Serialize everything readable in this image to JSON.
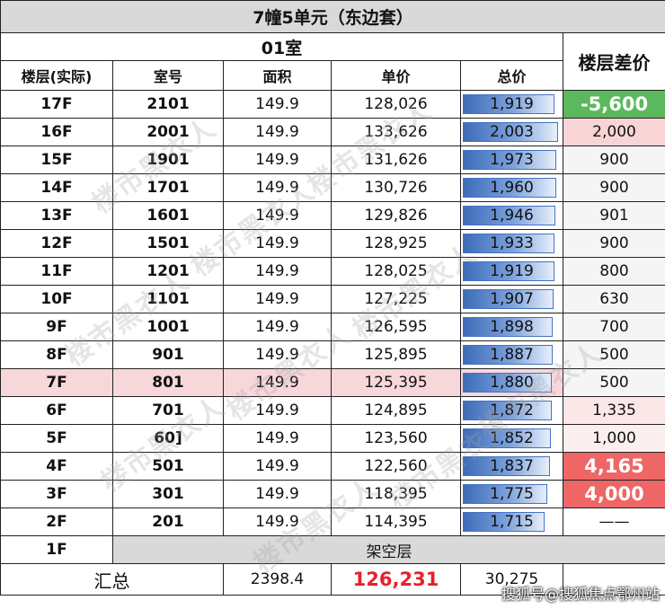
{
  "title": "7幢5单元（东边套）",
  "room_label": "01室",
  "headers": {
    "floor": "楼层(实际)",
    "unit": "室号",
    "area": "面积",
    "unit_price": "单价",
    "total": "总价",
    "diff": "楼层差价"
  },
  "rows": [
    {
      "floor": "17F",
      "unit": "2101",
      "area": "149.9",
      "price": "128,026",
      "total": "1,919",
      "total_value": 1919,
      "diff": "-5,600",
      "diff_style": "green"
    },
    {
      "floor": "16F",
      "unit": "2001",
      "area": "149.9",
      "price": "133,626",
      "total": "2,003",
      "total_value": 2003,
      "diff": "2,000",
      "diff_style": "pos-light"
    },
    {
      "floor": "15F",
      "unit": "1901",
      "area": "149.9",
      "price": "131,626",
      "total": "1,973",
      "total_value": 1973,
      "diff": "900",
      "diff_style": "pos-lighter"
    },
    {
      "floor": "14F",
      "unit": "1701",
      "area": "149.9",
      "price": "130,726",
      "total": "1,960",
      "total_value": 1960,
      "diff": "900",
      "diff_style": "pos-lighter"
    },
    {
      "floor": "13F",
      "unit": "1601",
      "area": "149.9",
      "price": "129,826",
      "total": "1,946",
      "total_value": 1946,
      "diff": "901",
      "diff_style": "pos-lighter"
    },
    {
      "floor": "12F",
      "unit": "1501",
      "area": "149.9",
      "price": "128,925",
      "total": "1,933",
      "total_value": 1933,
      "diff": "900",
      "diff_style": "pos-lighter"
    },
    {
      "floor": "11F",
      "unit": "1201",
      "area": "149.9",
      "price": "128,025",
      "total": "1,919",
      "total_value": 1919,
      "diff": "800",
      "diff_style": "pos-lighter"
    },
    {
      "floor": "10F",
      "unit": "1101",
      "area": "149.9",
      "price": "127,225",
      "total": "1,907",
      "total_value": 1907,
      "diff": "630",
      "diff_style": "pos-lighter"
    },
    {
      "floor": "9F",
      "unit": "1001",
      "area": "149.9",
      "price": "126,595",
      "total": "1,898",
      "total_value": 1898,
      "diff": "700",
      "diff_style": "pos-lighter"
    },
    {
      "floor": "8F",
      "unit": "901",
      "area": "149.9",
      "price": "125,895",
      "total": "1,887",
      "total_value": 1887,
      "diff": "500",
      "diff_style": "pos-lighter"
    },
    {
      "floor": "7F",
      "unit": "801",
      "area": "149.9",
      "price": "125,395",
      "total": "1,880",
      "total_value": 1880,
      "diff": "500",
      "diff_style": "pos-lighter",
      "highlight": true
    },
    {
      "floor": "6F",
      "unit": "701",
      "area": "149.9",
      "price": "124,895",
      "total": "1,872",
      "total_value": 1872,
      "diff": "1,335",
      "diff_style": "pos-faint"
    },
    {
      "floor": "5F",
      "unit": "60]",
      "area": "149.9",
      "price": "123,560",
      "total": "1,852",
      "total_value": 1852,
      "diff": "1,000",
      "diff_style": "pos-faint2"
    },
    {
      "floor": "4F",
      "unit": "501",
      "area": "149.9",
      "price": "122,560",
      "total": "1,837",
      "total_value": 1837,
      "diff": "4,165",
      "diff_style": "red"
    },
    {
      "floor": "3F",
      "unit": "301",
      "area": "149.9",
      "price": "118,395",
      "total": "1,775",
      "total_value": 1775,
      "diff": "4,000",
      "diff_style": "red"
    },
    {
      "floor": "2F",
      "unit": "201",
      "area": "149.9",
      "price": "114,395",
      "total": "1,715",
      "total_value": 1715,
      "diff": "——",
      "diff_style": "none"
    }
  ],
  "first_floor": {
    "floor": "1F",
    "note": "架空层"
  },
  "summary": {
    "label": "汇总",
    "area": "2398.4",
    "avg_price": "126,231",
    "total": "30,275"
  },
  "watermark_text": "楼市黑衣人",
  "credit": "搜狐号@搜狐焦点鄂州站",
  "colors": {
    "bar": "#4472c4",
    "green": "#5cb85c",
    "red": "#ee6666",
    "highlight": "#f8d7da",
    "price_red": "#e8202a"
  }
}
